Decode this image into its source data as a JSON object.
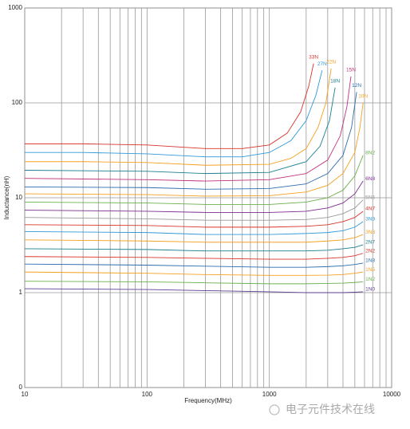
{
  "chart_data": {
    "type": "line",
    "xlabel": "Frequency(MHz)",
    "ylabel": "Inductance(nH)",
    "watermark": "电子元件技术在线",
    "xscale": "log",
    "yscale": "log",
    "xlim": [
      10,
      10000
    ],
    "ylim": [
      0.1,
      1000
    ],
    "xticks": [
      10,
      100,
      1000,
      10000
    ],
    "yticks": [
      {
        "value": 0.1,
        "label": "0"
      },
      1,
      10,
      100,
      1000
    ],
    "xgrid": [
      10,
      20,
      30,
      40,
      50,
      60,
      70,
      80,
      90,
      100,
      200,
      300,
      400,
      500,
      600,
      700,
      800,
      900,
      1000,
      2000,
      3000,
      4000,
      5000,
      6000,
      7000,
      8000,
      9000,
      10000
    ],
    "grid": true,
    "series": [
      {
        "name": "33N",
        "color": "#d9342b",
        "x": [
          10,
          30,
          100,
          300,
          600,
          1000,
          1400,
          1800,
          2100,
          2300
        ],
        "values": [
          37,
          37,
          36,
          33,
          33,
          36,
          48,
          80,
          150,
          260
        ]
      },
      {
        "name": "27N",
        "color": "#2f9ad8",
        "x": [
          10,
          30,
          100,
          300,
          600,
          1000,
          1500,
          2000,
          2400,
          2700
        ],
        "values": [
          30,
          30,
          29,
          27,
          27,
          30,
          40,
          65,
          120,
          220
        ]
      },
      {
        "name": "22N",
        "color": "#f5a020",
        "x": [
          10,
          30,
          100,
          300,
          1000,
          1500,
          2000,
          2500,
          2900,
          3200
        ],
        "values": [
          24,
          24,
          23.5,
          22,
          22.5,
          26,
          33,
          55,
          100,
          230
        ]
      },
      {
        "name": "18N",
        "color": "#1a7f8e",
        "x": [
          10,
          100,
          300,
          1000,
          2000,
          2600,
          3100,
          3450
        ],
        "values": [
          19.5,
          19,
          18,
          18.5,
          24,
          35,
          65,
          145
        ]
      },
      {
        "name": "15N",
        "color": "#c0307a",
        "x": [
          10,
          100,
          300,
          1000,
          2000,
          3000,
          3800,
          4300,
          4650
        ],
        "values": [
          16,
          15.5,
          15,
          15.5,
          18,
          25,
          45,
          90,
          190
        ]
      },
      {
        "name": "12N",
        "color": "#2b6cb0",
        "x": [
          10,
          100,
          300,
          1000,
          2000,
          3000,
          4000,
          4700,
          5170
        ],
        "values": [
          13,
          12.8,
          12.3,
          12.5,
          14,
          18,
          28,
          55,
          130
        ]
      },
      {
        "name": "10N",
        "color": "#f5a020",
        "x": [
          10,
          100,
          300,
          1000,
          2000,
          3000,
          4000,
          5000,
          5500,
          5840
        ],
        "values": [
          11,
          10.8,
          10.4,
          10.5,
          11.5,
          13.5,
          18,
          30,
          55,
          100
        ]
      },
      {
        "name": "8N2",
        "color": "#6ab04c",
        "x": [
          10,
          100,
          300,
          1000,
          2000,
          3000,
          4000,
          5000,
          5840
        ],
        "values": [
          9,
          8.8,
          8.5,
          8.5,
          9,
          10,
          12,
          17,
          28
        ]
      },
      {
        "name": "6N8",
        "color": "#7b2d8e",
        "x": [
          10,
          100,
          300,
          1000,
          2000,
          3000,
          4000,
          5000,
          5840
        ],
        "values": [
          7.4,
          7.2,
          7,
          7,
          7.2,
          7.8,
          8.8,
          11,
          15
        ]
      },
      {
        "name": "5N6",
        "color": "#999999",
        "x": [
          10,
          100,
          300,
          1000,
          2000,
          3000,
          4000,
          5000,
          5840
        ],
        "values": [
          6.2,
          6,
          5.8,
          5.8,
          5.9,
          6.2,
          6.8,
          7.8,
          9.5
        ]
      },
      {
        "name": "4N7",
        "color": "#d9342b",
        "x": [
          10,
          100,
          300,
          1000,
          2000,
          3000,
          4000,
          5000,
          5840
        ],
        "values": [
          5.2,
          5.1,
          4.9,
          4.9,
          5,
          5.2,
          5.6,
          6.2,
          7.2
        ]
      },
      {
        "name": "3N9",
        "color": "#2f9ad8",
        "x": [
          10,
          100,
          300,
          1000,
          2000,
          3000,
          4000,
          5000,
          5840
        ],
        "values": [
          4.4,
          4.3,
          4.1,
          4.1,
          4.2,
          4.3,
          4.5,
          4.9,
          5.6
        ]
      },
      {
        "name": "3N3",
        "color": "#f5a020",
        "x": [
          10,
          100,
          300,
          1000,
          2000,
          3000,
          4000,
          5000,
          5840
        ],
        "values": [
          3.6,
          3.5,
          3.4,
          3.4,
          3.4,
          3.5,
          3.6,
          3.8,
          4.1
        ]
      },
      {
        "name": "2N7",
        "color": "#1a7f8e",
        "x": [
          10,
          100,
          300,
          1000,
          2000,
          3000,
          4000,
          5000,
          5840
        ],
        "values": [
          2.9,
          2.85,
          2.75,
          2.75,
          2.75,
          2.8,
          2.9,
          3.0,
          3.2
        ]
      },
      {
        "name": "2N2",
        "color": "#d9342b",
        "x": [
          10,
          100,
          300,
          1000,
          2000,
          3000,
          4000,
          5000,
          5840
        ],
        "values": [
          2.4,
          2.35,
          2.3,
          2.25,
          2.25,
          2.3,
          2.35,
          2.45,
          2.6
        ]
      },
      {
        "name": "1N8",
        "color": "#2b6cb0",
        "x": [
          10,
          100,
          300,
          1000,
          2000,
          3000,
          4000,
          5000,
          5840
        ],
        "values": [
          2.0,
          1.95,
          1.9,
          1.85,
          1.85,
          1.88,
          1.92,
          1.98,
          2.05
        ]
      },
      {
        "name": "1N5",
        "color": "#f5a020",
        "x": [
          10,
          100,
          300,
          1000,
          2000,
          3000,
          4000,
          5000,
          5840
        ],
        "values": [
          1.65,
          1.6,
          1.55,
          1.52,
          1.52,
          1.53,
          1.55,
          1.6,
          1.65
        ]
      },
      {
        "name": "1N2",
        "color": "#6ab04c",
        "x": [
          10,
          100,
          300,
          1000,
          2000,
          3000,
          4000,
          5000,
          5840
        ],
        "values": [
          1.32,
          1.3,
          1.27,
          1.24,
          1.24,
          1.25,
          1.26,
          1.28,
          1.3
        ]
      },
      {
        "name": "1N0",
        "color": "#5b3d8f",
        "x": [
          10,
          100,
          300,
          1000,
          2000,
          3000,
          4000,
          5000,
          5840
        ],
        "values": [
          1.1,
          1.08,
          1.05,
          1.02,
          1.0,
          1.0,
          1.0,
          1.01,
          1.02
        ]
      }
    ]
  }
}
